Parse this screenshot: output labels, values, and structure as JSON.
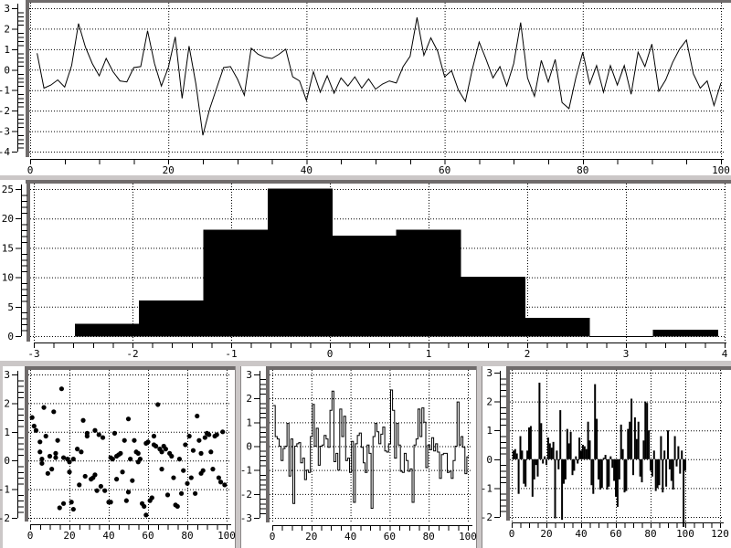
{
  "window": {
    "background": "#ffffff",
    "sash_color": "#cbc7c7",
    "sash_edge_color": "#8a8686",
    "bevel_color": "#6f6b6b",
    "plot_color": "#000000"
  },
  "chart_data": [
    {
      "id": "noise-line",
      "type": "line",
      "title": "",
      "x_range": [
        0,
        100
      ],
      "y_range": [
        -4,
        3
      ],
      "x_ticks": [
        0,
        20,
        40,
        60,
        80,
        100
      ],
      "y_ticks": [
        3,
        2,
        1,
        0,
        -1,
        -2,
        -3,
        -4
      ],
      "x_minor_step": 5,
      "y_minor_step": 0.2,
      "grid": true,
      "x_start": 1,
      "values": [
        0.8,
        -0.9,
        -0.75,
        -0.5,
        -0.85,
        0.2,
        2.25,
        1.1,
        0.3,
        -0.3,
        0.55,
        -0.1,
        -0.55,
        -0.6,
        0.1,
        0.15,
        1.9,
        0.3,
        -0.8,
        0.1,
        1.6,
        -1.4,
        1.15,
        -0.7,
        -3.2,
        -1.9,
        -0.9,
        0.1,
        0.15,
        -0.45,
        -1.25,
        1.05,
        0.75,
        0.6,
        0.55,
        0.75,
        1.0,
        -0.35,
        -0.55,
        -1.5,
        -0.1,
        -1.1,
        -0.3,
        -1.15,
        -0.4,
        -0.8,
        -0.35,
        -0.9,
        -0.45,
        -0.95,
        -0.7,
        -0.55,
        -0.65,
        0.15,
        0.65,
        2.55,
        0.7,
        1.55,
        0.9,
        -0.35,
        -0.05,
        -1.0,
        -1.55,
        0.0,
        1.35,
        0.5,
        -0.4,
        0.15,
        -0.8,
        0.3,
        2.3,
        -0.4,
        -1.3,
        0.45,
        -0.6,
        0.5,
        -1.6,
        -1.9,
        -0.4,
        0.85,
        -0.7,
        0.2,
        -1.1,
        0.2,
        -0.75,
        0.2,
        -1.2,
        0.85,
        0.15,
        1.25,
        -1.05,
        -0.5,
        0.35,
        1.0,
        1.45,
        -0.2,
        -0.9,
        -0.55,
        -1.75,
        -0.65
      ]
    },
    {
      "id": "histogram",
      "type": "bar",
      "title": "",
      "x_range": [
        -3,
        4
      ],
      "y_range": [
        0,
        25
      ],
      "x_ticks": [
        -3,
        -2,
        -1,
        0,
        1,
        2,
        3,
        4
      ],
      "y_ticks": [
        25,
        20,
        15,
        10,
        5,
        0
      ],
      "x_minor_step": 0.2,
      "y_minor_step": 1,
      "grid": true,
      "bin_start": -2.58,
      "bin_width": 0.651,
      "counts": [
        2,
        6,
        18,
        25,
        17,
        18,
        10,
        3,
        0,
        1
      ]
    },
    {
      "id": "scatter",
      "type": "scatter",
      "title": "",
      "x_range": [
        0,
        100
      ],
      "y_range": [
        -2,
        3
      ],
      "x_ticks": [
        0,
        20,
        40,
        60,
        80,
        100
      ],
      "y_ticks": [
        3,
        2,
        1,
        0,
        -1,
        -2
      ],
      "x_minor_step": 5,
      "y_minor_step": 0.2,
      "grid": true,
      "points": [
        [
          1,
          1.5
        ],
        [
          2,
          1.2
        ],
        [
          3,
          1.05
        ],
        [
          5,
          0.65
        ],
        [
          5,
          0.3
        ],
        [
          6,
          0.05
        ],
        [
          6,
          -0.1
        ],
        [
          7,
          1.85
        ],
        [
          8,
          0.85
        ],
        [
          9,
          -0.45
        ],
        [
          10,
          0.15
        ],
        [
          11,
          -0.3
        ],
        [
          12,
          1.7
        ],
        [
          13,
          0.25
        ],
        [
          13,
          0.1
        ],
        [
          14,
          0.7
        ],
        [
          15,
          -1.65
        ],
        [
          16,
          2.5
        ],
        [
          17,
          -1.5
        ],
        [
          17,
          0.1
        ],
        [
          19,
          0.05
        ],
        [
          20,
          -0.05
        ],
        [
          20,
          -0.4
        ],
        [
          21,
          -1.45
        ],
        [
          22,
          -1.7
        ],
        [
          22,
          0.05
        ],
        [
          24,
          0.4
        ],
        [
          25,
          -0.85
        ],
        [
          26,
          0.3
        ],
        [
          27,
          1.4
        ],
        [
          28,
          -0.55
        ],
        [
          29,
          0.95
        ],
        [
          29,
          0.85
        ],
        [
          31,
          -0.65
        ],
        [
          32,
          -0.6
        ],
        [
          33,
          1.05
        ],
        [
          33,
          -0.5
        ],
        [
          34,
          -1.05
        ],
        [
          35,
          0.9
        ],
        [
          36,
          -0.9
        ],
        [
          37,
          0.8
        ],
        [
          38,
          -1.05
        ],
        [
          40,
          -1.45
        ],
        [
          41,
          -1.45
        ],
        [
          41,
          0.1
        ],
        [
          42,
          0.05
        ],
        [
          43,
          0.95
        ],
        [
          44,
          -0.65
        ],
        [
          44,
          0.15
        ],
        [
          45,
          0.2
        ],
        [
          46,
          0.25
        ],
        [
          47,
          -0.4
        ],
        [
          48,
          0.7
        ],
        [
          49,
          -1.4
        ],
        [
          50,
          1.45
        ],
        [
          50,
          -1.1
        ],
        [
          51,
          0.05
        ],
        [
          52,
          -0.7
        ],
        [
          53,
          0.7
        ],
        [
          54,
          0.3
        ],
        [
          55,
          0.25
        ],
        [
          55,
          -0.05
        ],
        [
          56,
          0.05
        ],
        [
          57,
          -1.5
        ],
        [
          58,
          -1.6
        ],
        [
          59,
          -1.9
        ],
        [
          59,
          0.6
        ],
        [
          60,
          0.65
        ],
        [
          61,
          -1.4
        ],
        [
          62,
          -1.3
        ],
        [
          63,
          0.85
        ],
        [
          63,
          0.55
        ],
        [
          64,
          0.5
        ],
        [
          65,
          1.95
        ],
        [
          66,
          0.4
        ],
        [
          67,
          0.3
        ],
        [
          67,
          -0.3
        ],
        [
          68,
          0.5
        ],
        [
          69,
          0.4
        ],
        [
          70,
          -1.2
        ],
        [
          71,
          0.25
        ],
        [
          72,
          0.15
        ],
        [
          73,
          -0.6
        ],
        [
          74,
          -1.55
        ],
        [
          75,
          -1.6
        ],
        [
          76,
          0.05
        ],
        [
          77,
          -1.15
        ],
        [
          78,
          -0.35
        ],
        [
          79,
          0.55
        ],
        [
          80,
          -0.8
        ],
        [
          81,
          0.85
        ],
        [
          82,
          -0.6
        ],
        [
          83,
          0.35
        ],
        [
          84,
          -1.15
        ],
        [
          85,
          1.55
        ],
        [
          86,
          0.7
        ],
        [
          87,
          -0.45
        ],
        [
          87,
          0.25
        ],
        [
          88,
          -0.35
        ],
        [
          89,
          0.8
        ],
        [
          90,
          0.95
        ],
        [
          91,
          0.9
        ],
        [
          92,
          0.3
        ],
        [
          93,
          -0.3
        ],
        [
          94,
          0.85
        ],
        [
          95,
          0.9
        ],
        [
          96,
          -0.6
        ],
        [
          97,
          -0.75
        ],
        [
          98,
          1.0
        ],
        [
          99,
          -0.85
        ]
      ]
    },
    {
      "id": "histeps",
      "type": "histeps",
      "title": "",
      "x_range": [
        0,
        100
      ],
      "y_range": [
        -3,
        3
      ],
      "x_ticks": [
        0,
        20,
        40,
        60,
        80,
        100
      ],
      "y_ticks": [
        3,
        2,
        1,
        0,
        -1,
        -2,
        -3
      ],
      "x_minor_step": 5,
      "y_minor_step": 0.2,
      "grid": true,
      "x_start": 1,
      "values": [
        1.7,
        0.4,
        0.3,
        0.0,
        -0.6,
        -0.1,
        0.0,
        0.95,
        -1.25,
        0.3,
        -2.4,
        0.0,
        0.1,
        0.15,
        -0.7,
        -0.5,
        -1.4,
        -1.0,
        -1.1,
        0.4,
        1.75,
        0.0,
        0.75,
        -0.8,
        0.0,
        0.05,
        0.45,
        0.3,
        -0.05,
        1.5,
        2.3,
        -0.65,
        -0.3,
        -1.0,
        1.55,
        0.4,
        1.25,
        -0.6,
        -0.5,
        -1.1,
        0.2,
        -2.35,
        0.1,
        0.45,
        0.55,
        -0.05,
        -0.7,
        -1.1,
        0.05,
        -0.3,
        -2.6,
        0.4,
        0.95,
        0.6,
        0.1,
        0.5,
        0.8,
        -0.2,
        -0.25,
        0.1,
        2.35,
        1.5,
        -0.5,
        0.95,
        0.05,
        -1.05,
        -1.1,
        -0.3,
        -0.6,
        -1.05,
        -0.95,
        -2.35,
        0.05,
        0.3,
        1.55,
        0.4,
        1.6,
        1.0,
        -0.9,
        0.05,
        -0.15,
        0.35,
        -0.2,
        0.1,
        -0.25,
        -1.35,
        -0.35,
        -0.3,
        -0.3,
        -1.1,
        -1.05,
        -1.35,
        -0.6,
        0.0,
        1.85,
        0.05,
        0.4,
        -0.05,
        -1.15,
        -0.45
      ]
    },
    {
      "id": "impulses",
      "type": "impulses",
      "title": "",
      "x_range": [
        0,
        120
      ],
      "y_range": [
        -2,
        3
      ],
      "x_ticks": [
        0,
        20,
        40,
        60,
        80,
        100,
        120
      ],
      "y_ticks": [
        3,
        2,
        1,
        0,
        -1,
        -2
      ],
      "x_minor_step": 5,
      "y_minor_step": 0.2,
      "grid": true,
      "x_start": 1,
      "values": [
        0.3,
        0.35,
        0.2,
        -1.2,
        0.8,
        0.3,
        -0.85,
        -0.95,
        0.3,
        1.1,
        1.15,
        -1.3,
        -0.7,
        -0.2,
        -0.6,
        2.65,
        1.25,
        -0.15,
        0.1,
        -0.2,
        0.75,
        0.55,
        0.4,
        0.6,
        -2.05,
        0.3,
        -0.35,
        1.7,
        -2.1,
        -0.85,
        -0.7,
        1.05,
        0.55,
        0.95,
        -0.55,
        -0.4,
        0.1,
        -0.15,
        0.75,
        0.3,
        0.5,
        0.45,
        0.35,
        1.3,
        0.65,
        -0.9,
        -1.2,
        2.6,
        1.4,
        -0.7,
        -1.05,
        -1.0,
        0.05,
        0.15,
        -1.05,
        -0.95,
        0.1,
        -0.3,
        -0.75,
        -1.3,
        -1.65,
        -0.7,
        1.2,
        0.35,
        -1.15,
        -1.1,
        1.05,
        1.3,
        2.1,
        -0.55,
        1.45,
        0.7,
        1.3,
        -0.6,
        -0.8,
        0.65,
        2.0,
        1.95,
        1.0,
        -0.4,
        -0.6,
        0.3,
        -1.1,
        -1.0,
        -0.9,
        0.8,
        -1.15,
        0.3,
        -0.95,
        1.0,
        -0.35,
        -0.75,
        -1.05,
        0.8,
        -0.25,
        0.45,
        -0.5,
        0.3,
        -2.35,
        -0.4
      ]
    }
  ]
}
